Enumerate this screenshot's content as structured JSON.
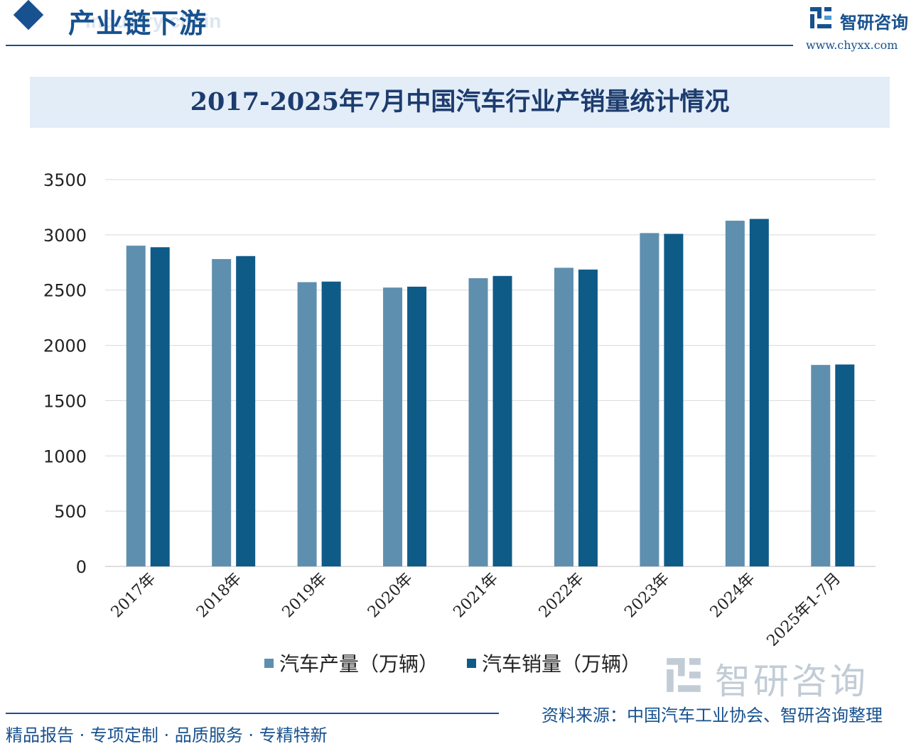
{
  "header": {
    "section_title": "产业链下游",
    "section_subtitle": "Industry chain",
    "brand_name": "智研咨询",
    "brand_url": "www.chyxx.com",
    "brand_icon": "zhiyan-logo-icon",
    "accent_color": "#17518f"
  },
  "chart_data": {
    "type": "bar",
    "title": "2017-2025年7月中国汽车行业产销量统计情况",
    "categories": [
      "2017年",
      "2018年",
      "2019年",
      "2020年",
      "2021年",
      "2022年",
      "2023年",
      "2024年",
      "2025年1-7月"
    ],
    "series": [
      {
        "name": "汽车产量（万辆）",
        "color": "#5f8fae",
        "values": [
          2902,
          2781,
          2572,
          2523,
          2608,
          2702,
          3016,
          3128,
          1823
        ]
      },
      {
        "name": "汽车销量（万辆）",
        "color": "#0e5b88",
        "values": [
          2888,
          2808,
          2577,
          2531,
          2628,
          2686,
          3009,
          3144,
          1827
        ]
      }
    ],
    "yticks": [
      0,
      500,
      1000,
      1500,
      2000,
      2500,
      3000,
      3500
    ],
    "ylim": [
      0,
      3500
    ],
    "xlabel": "",
    "ylabel": "",
    "grid": true,
    "legend_position": "bottom"
  },
  "watermark": {
    "text": "智研咨询"
  },
  "footer": {
    "tagline": "精品报告 · 专项定制 · 品质服务 · 专精特新",
    "source": "资料来源：中国汽车工业协会、智研咨询整理"
  }
}
